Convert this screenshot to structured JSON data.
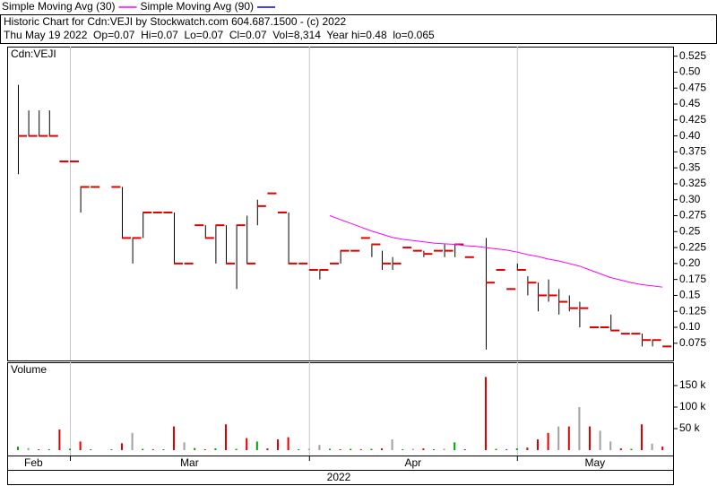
{
  "chart_data": {
    "type": "ohlc",
    "title": "Historic Chart for Cdn:VEJI by Stockwatch.com 604.687.1500 - (c) 2022",
    "subtitle": "Thu May 19 2022  Op=0.07  Hi=0.07  Lo=0.07  Cl=0.07  Vol=8,314  Year hi=0.48  lo=0.065",
    "symbol_label": "Cdn:VEJI",
    "bar_color": "#000000",
    "close_color": "#e00000",
    "high": [
      0.48,
      0.44,
      0.44,
      0.44,
      0.36,
      0.36,
      0.32,
      0.32,
      null,
      0.32,
      0.32,
      0.24,
      0.28,
      0.28,
      0.28,
      0.28,
      0.2,
      0.26,
      0.26,
      0.26,
      0.26,
      0.26,
      0.275,
      0.3,
      0.31,
      0.28,
      0.28,
      0.2,
      0.19,
      0.19,
      0.2,
      0.22,
      0.22,
      0.24,
      0.23,
      0.22,
      0.21,
      0.225,
      0.22,
      0.22,
      0.22,
      0.23,
      0.23,
      0.21,
      null,
      0.24,
      0.19,
      0.16,
      0.2,
      0.18,
      0.17,
      0.175,
      0.16,
      0.15,
      0.14,
      0.1,
      0.1,
      0.12,
      0.09,
      0.09,
      0.09,
      0.08,
      0.07
    ],
    "low": [
      0.34,
      0.4,
      0.4,
      0.4,
      0.36,
      0.36,
      0.28,
      0.32,
      null,
      0.32,
      0.24,
      0.2,
      0.24,
      0.28,
      0.28,
      0.2,
      0.2,
      0.26,
      0.24,
      0.2,
      0.2,
      0.16,
      0.2,
      0.26,
      0.31,
      0.28,
      0.2,
      0.2,
      0.19,
      0.175,
      0.2,
      0.2,
      0.22,
      0.24,
      0.21,
      0.19,
      0.19,
      0.225,
      0.22,
      0.21,
      0.22,
      0.21,
      0.21,
      0.21,
      null,
      0.065,
      0.19,
      0.16,
      0.19,
      0.15,
      0.125,
      0.14,
      0.12,
      0.125,
      0.1,
      0.1,
      0.1,
      0.095,
      0.09,
      0.09,
      0.07,
      0.07,
      0.07
    ],
    "close": [
      0.4,
      0.4,
      0.4,
      0.4,
      0.36,
      0.36,
      0.32,
      0.32,
      null,
      0.32,
      0.24,
      0.24,
      0.28,
      0.28,
      0.28,
      0.2,
      0.2,
      0.26,
      0.24,
      0.26,
      0.2,
      0.26,
      0.2,
      0.29,
      0.31,
      0.28,
      0.2,
      0.2,
      0.19,
      0.19,
      0.2,
      0.22,
      0.22,
      0.24,
      0.23,
      0.2,
      0.2,
      0.225,
      0.22,
      0.215,
      0.22,
      0.22,
      0.23,
      0.21,
      null,
      0.17,
      0.19,
      0.16,
      0.19,
      0.17,
      0.15,
      0.15,
      0.14,
      0.13,
      0.13,
      0.1,
      0.1,
      0.095,
      0.09,
      0.09,
      0.08,
      0.08,
      0.07
    ],
    "series": [
      {
        "name": "Simple Moving Avg (30)",
        "color": "#ff00ff",
        "values": [
          null,
          null,
          null,
          null,
          null,
          null,
          null,
          null,
          null,
          null,
          null,
          null,
          null,
          null,
          null,
          null,
          null,
          null,
          null,
          null,
          null,
          null,
          null,
          null,
          null,
          null,
          null,
          null,
          null,
          null,
          0.275,
          0.269,
          0.263,
          0.257,
          0.251,
          0.246,
          0.241,
          0.238,
          0.236,
          0.234,
          0.232,
          0.231,
          0.23,
          0.228,
          0.227,
          0.225,
          0.223,
          0.221,
          0.218,
          0.214,
          0.211,
          0.207,
          0.204,
          0.2,
          0.196,
          0.19,
          0.184,
          0.178,
          0.174,
          0.17,
          0.167,
          0.165,
          0.163
        ]
      },
      {
        "name": "Simple Moving Avg (90)",
        "color": "#0000ff",
        "values": [
          null,
          null,
          null,
          null,
          null,
          null,
          null,
          null,
          null,
          null,
          null,
          null,
          null,
          null,
          null,
          null,
          null,
          null,
          null,
          null,
          null,
          null,
          null,
          null,
          null,
          null,
          null,
          null,
          null,
          null,
          null,
          null,
          null,
          null,
          null,
          null,
          null,
          null,
          null,
          null,
          null,
          null,
          null,
          null,
          null,
          null,
          null,
          null,
          null,
          null,
          null,
          null,
          null,
          null,
          null,
          null,
          null,
          null,
          null,
          null,
          null,
          null,
          null
        ]
      }
    ],
    "ylim": [
      0.048,
      0.54
    ],
    "yticks": [
      0.525,
      {
        "value": 0.5,
        "label": "0.50"
      },
      0.475,
      0.45,
      0.425,
      {
        "value": 0.4,
        "label": "0.40"
      },
      0.375,
      0.35,
      0.325,
      {
        "value": 0.3,
        "label": "0.30"
      },
      0.275,
      0.25,
      0.225,
      {
        "value": 0.2,
        "label": "0.20"
      },
      0.175,
      0.15,
      0.125,
      {
        "value": 0.1,
        "label": "0.10"
      },
      0.075
    ],
    "volume": {
      "label": "Volume",
      "values": [
        8000,
        5000,
        2000,
        2000,
        48000,
        3000,
        20000,
        2000,
        null,
        2000,
        16000,
        40000,
        3000,
        2000,
        2000,
        55000,
        18000,
        5000,
        2000,
        4000,
        60000,
        3000,
        28000,
        20000,
        4000,
        25000,
        30000,
        2000,
        3000,
        12000,
        3000,
        2000,
        3000,
        2000,
        3000,
        4000,
        25000,
        2000,
        3000,
        4000,
        2000,
        3000,
        18000,
        2000,
        null,
        170000,
        3000,
        2000,
        4000,
        6000,
        25000,
        40000,
        55000,
        55000,
        100000,
        55000,
        45000,
        20000,
        4000,
        3000,
        60000,
        15000,
        8314
      ],
      "colors": [
        "#00a000",
        "#a0a0a0",
        "#e00000",
        "#00a000",
        "#e00000",
        "#00a000",
        "#e00000",
        "#00a000",
        "#a0a0a0",
        "#00a000",
        "#e00000",
        "#a0a0a0",
        "#00a000",
        "#e00000",
        "#00a000",
        "#e00000",
        "#a0a0a0",
        "#00a000",
        "#e00000",
        "#00a000",
        "#e00000",
        "#00a000",
        "#e00000",
        "#00a000",
        "#e00000",
        "#e00000",
        "#e00000",
        "#00a000",
        "#a0a0a0",
        "#a0a0a0",
        "#00a000",
        "#e00000",
        "#00a000",
        "#e00000",
        "#00a000",
        "#e00000",
        "#a0a0a0",
        "#00a000",
        "#a0a0a0",
        "#e00000",
        "#00a000",
        "#a0a0a0",
        "#00a000",
        "#e00000",
        "#a0a0a0",
        "#e00000",
        "#00a000",
        "#e00000",
        "#00a000",
        "#e00000",
        "#e00000",
        "#e00000",
        "#a0a0a0",
        "#e00000",
        "#a0a0a0",
        "#e00000",
        "#a0a0a0",
        "#a0a0a0",
        "#e00000",
        "#00a000",
        "#e00000",
        "#a0a0a0",
        "#e00000"
      ],
      "ylim": [
        0,
        200000
      ],
      "yticks": [
        {
          "value": 50000,
          "label": "50 k"
        },
        {
          "value": 100000,
          "label": "100 k"
        },
        {
          "value": 150000,
          "label": "150 k"
        }
      ]
    },
    "xticks": [
      {
        "value": 1.5,
        "label": "Feb"
      },
      {
        "value": 16.5,
        "label": "Mar"
      },
      {
        "value": 38,
        "label": "Apr"
      },
      {
        "value": 55.5,
        "label": "May"
      }
    ],
    "xgrid": [
      5,
      28,
      48
    ],
    "x_label": "2022"
  }
}
